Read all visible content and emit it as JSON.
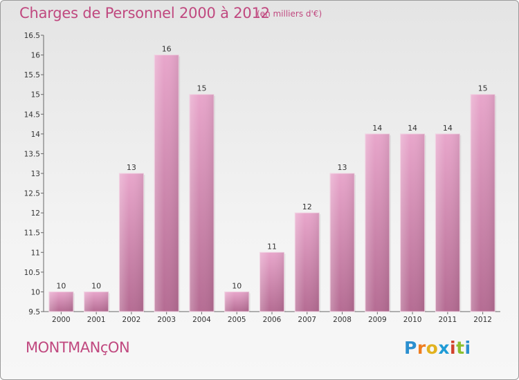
{
  "header": {
    "title": "Charges de Personnel 2000 à 2012",
    "subtitle": "(en milliers d'€)"
  },
  "footer": {
    "commune": "MONTMANçON",
    "logo": "Proxiti"
  },
  "colors": {
    "accent": "#c0487f",
    "bar_top": "#e8a6cb",
    "bar_bottom": "#b56c93"
  },
  "chart_data": {
    "type": "bar",
    "title": "Charges de Personnel 2000 à 2012",
    "subtitle": "(en milliers d'€)",
    "categories": [
      "2000",
      "2001",
      "2002",
      "2003",
      "2004",
      "2005",
      "2006",
      "2007",
      "2008",
      "2009",
      "2010",
      "2011",
      "2012"
    ],
    "values": [
      10,
      10,
      13,
      16,
      15,
      10,
      11,
      12,
      13,
      14,
      14,
      14,
      15
    ],
    "data_labels": [
      "10",
      "10",
      "13",
      "16",
      "15",
      "10",
      "11",
      "12",
      "13",
      "14",
      "14",
      "14",
      "15"
    ],
    "ylim": [
      9.5,
      16.5
    ],
    "yticks": [
      9.5,
      10,
      10.5,
      11,
      11.5,
      12,
      12.5,
      13,
      13.5,
      14,
      14.5,
      15,
      15.5,
      16,
      16.5
    ],
    "ytick_labels": [
      "9.5",
      "10",
      "10.5",
      "11",
      "11.5",
      "12",
      "12.5",
      "13",
      "13.5",
      "14",
      "14.5",
      "15",
      "15.5",
      "16",
      "16.5"
    ],
    "grid": false,
    "legend": "none"
  }
}
